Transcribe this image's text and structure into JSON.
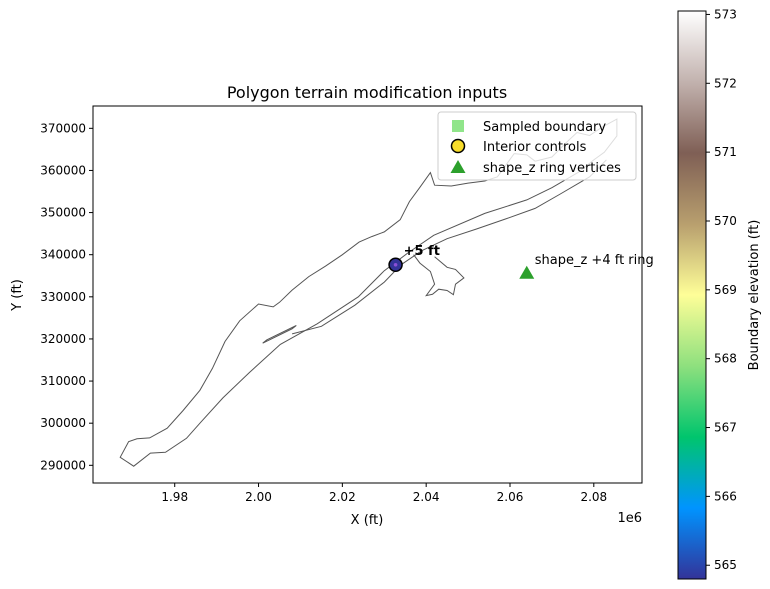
{
  "chart_data": {
    "type": "scatter",
    "title": "Polygon terrain modification inputs",
    "xlabel": "X (ft)",
    "ylabel": "Y (ft)",
    "x_offset_label": "1e6",
    "xlim": [
      1.9605,
      2.0915
    ],
    "ylim": [
      285800,
      375300
    ],
    "x_ticks": [
      1.98,
      2.0,
      2.02,
      2.04,
      2.06,
      2.08
    ],
    "x_tick_labels": [
      "1.98",
      "2.00",
      "2.02",
      "2.04",
      "2.06",
      "2.08"
    ],
    "y_ticks": [
      290000,
      300000,
      310000,
      320000,
      330000,
      340000,
      350000,
      360000,
      370000
    ],
    "y_tick_labels": [
      "290000",
      "300000",
      "310000",
      "320000",
      "330000",
      "340000",
      "350000",
      "360000",
      "370000"
    ],
    "grid": false,
    "legend_position": "top-right",
    "series": [
      {
        "name": "Sampled boundary",
        "marker": "square",
        "color": "#90e58a",
        "points": []
      },
      {
        "name": "Interior controls",
        "marker": "circle",
        "color": "#f7dc2b",
        "points": [
          {
            "x": 2.0327,
            "y": 337600,
            "value": 565
          }
        ]
      },
      {
        "name": "shape_z ring vertices",
        "marker": "triangle",
        "color": "#2ca02c",
        "points": [
          {
            "x": 2.064,
            "y": 335700
          }
        ]
      }
    ],
    "annotations": [
      {
        "text": "+5 ft",
        "x": 2.0327,
        "y": 337600,
        "weight": "bold"
      },
      {
        "text": "shape_z +4 ft ring",
        "x": 2.064,
        "y": 335700
      }
    ],
    "boundary_outline": {
      "color": "#555555",
      "outer": [
        [
          1.967,
          291900
        ],
        [
          1.9702,
          289800
        ],
        [
          1.9742,
          292900
        ],
        [
          1.9778,
          293100
        ],
        [
          1.9828,
          296400
        ],
        [
          1.9862,
          300200
        ],
        [
          1.9915,
          306000
        ],
        [
          1.9978,
          312000
        ],
        [
          2.0052,
          318700
        ],
        [
          2.014,
          323600
        ],
        [
          2.0238,
          330000
        ],
        [
          2.03,
          336200
        ],
        [
          2.0355,
          340300
        ],
        [
          2.0418,
          344600
        ],
        [
          2.054,
          349800
        ],
        [
          2.064,
          353000
        ],
        [
          2.07,
          355900
        ],
        [
          2.0762,
          359500
        ],
        [
          2.08,
          362500
        ],
        [
          2.0825,
          364300
        ],
        [
          2.0855,
          368200
        ],
        [
          2.0855,
          372200
        ],
        [
          2.082,
          370300
        ],
        [
          2.079,
          368300
        ],
        [
          2.076,
          369000
        ],
        [
          2.0735,
          366700
        ],
        [
          2.07,
          363200
        ],
        [
          2.066,
          362200
        ],
        [
          2.064,
          363700
        ],
        [
          2.061,
          364000
        ],
        [
          2.057,
          358500
        ],
        [
          2.054,
          357500
        ],
        [
          2.05,
          357000
        ],
        [
          2.046,
          356300
        ],
        [
          2.042,
          356500
        ],
        [
          2.041,
          359500
        ],
        [
          2.0385,
          356000
        ],
        [
          2.036,
          352600
        ],
        [
          2.0338,
          348300
        ],
        [
          2.03,
          345400
        ],
        [
          2.027,
          344300
        ],
        [
          2.024,
          343000
        ],
        [
          2.02,
          340000
        ],
        [
          2.016,
          337300
        ],
        [
          2.012,
          334800
        ],
        [
          2.008,
          331600
        ],
        [
          2.005,
          328700
        ],
        [
          2.0035,
          327600
        ],
        [
          2.0,
          328300
        ],
        [
          1.9955,
          324300
        ],
        [
          1.992,
          319400
        ],
        [
          1.989,
          313000
        ],
        [
          1.986,
          307800
        ],
        [
          1.982,
          303000
        ],
        [
          1.9782,
          298800
        ],
        [
          1.974,
          296500
        ],
        [
          1.971,
          296300
        ],
        [
          1.969,
          295600
        ],
        [
          1.967,
          291900
        ]
      ],
      "channel": [
        [
          2.008,
          321200
        ],
        [
          2.015,
          323000
        ],
        [
          2.023,
          328000
        ],
        [
          2.03,
          333500
        ],
        [
          2.034,
          337600
        ],
        [
          2.039,
          341000
        ],
        [
          2.045,
          343800
        ],
        [
          2.052,
          346100
        ],
        [
          2.059,
          348500
        ],
        [
          2.066,
          351000
        ],
        [
          2.072,
          354400
        ],
        [
          2.079,
          358500
        ],
        [
          2.083,
          362500
        ]
      ],
      "branch": [
        [
          2.042,
          339500
        ],
        [
          2.045,
          337000
        ],
        [
          2.047,
          336500
        ],
        [
          2.049,
          334500
        ],
        [
          2.047,
          333000
        ],
        [
          2.0465,
          330500
        ],
        [
          2.045,
          331500
        ],
        [
          2.043,
          331800
        ],
        [
          2.0415,
          330600
        ],
        [
          2.04,
          330300
        ],
        [
          2.042,
          333000
        ],
        [
          2.041,
          336000
        ],
        [
          2.0385,
          338000
        ],
        [
          2.037,
          340000
        ]
      ],
      "island": [
        [
          2.002,
          319800
        ],
        [
          2.009,
          323200
        ],
        [
          2.008,
          322400
        ],
        [
          2.001,
          319000
        ],
        [
          2.002,
          319800
        ]
      ]
    }
  },
  "colorbar": {
    "label": "Boundary elevation (ft)",
    "min": 564.8,
    "max": 573.05,
    "ticks": [
      565,
      566,
      567,
      568,
      569,
      570,
      571,
      572,
      573
    ],
    "tick_labels": [
      "565",
      "566",
      "567",
      "568",
      "569",
      "570",
      "571",
      "572",
      "573"
    ],
    "colormap": "terrain_r",
    "stops": [
      "#333399",
      "#0094ff",
      "#00c56d",
      "#8ee07e",
      "#fefe98",
      "#b89f6e",
      "#7f5f55",
      "#c2b2ae",
      "#ffffff"
    ]
  }
}
